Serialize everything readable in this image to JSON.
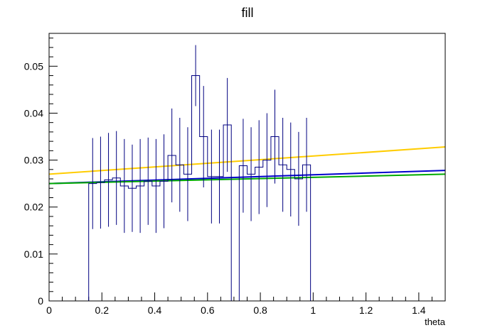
{
  "chart_data": {
    "type": "histogram",
    "title": "fill",
    "xlabel": "theta",
    "ylabel": "",
    "xlim": [
      0,
      1.5
    ],
    "ylim": [
      0,
      0.057
    ],
    "x_ticks": [
      0,
      0.2,
      0.4,
      0.6,
      0.8,
      1,
      1.2,
      1.4
    ],
    "x_tick_labels": [
      "0",
      "0.2",
      "0.4",
      "0.6",
      "0.8",
      "1",
      "1.2",
      "1.4"
    ],
    "y_ticks": [
      0,
      0.01,
      0.02,
      0.03,
      0.04,
      0.05
    ],
    "y_tick_labels": [
      "0",
      "0.01",
      "0.02",
      "0.03",
      "0.04",
      "0.05"
    ],
    "bin_width": 0.03,
    "histogram": {
      "color": "#000080",
      "bins": [
        {
          "x0": 0.15,
          "y": 0.025,
          "err": 0.0097
        },
        {
          "x0": 0.18,
          "y": 0.0252,
          "err": 0.0098
        },
        {
          "x0": 0.21,
          "y": 0.0258,
          "err": 0.01
        },
        {
          "x0": 0.24,
          "y": 0.0262,
          "err": 0.01
        },
        {
          "x0": 0.27,
          "y": 0.0245,
          "err": 0.01
        },
        {
          "x0": 0.3,
          "y": 0.024,
          "err": 0.0093
        },
        {
          "x0": 0.33,
          "y": 0.0245,
          "err": 0.01
        },
        {
          "x0": 0.36,
          "y": 0.0255,
          "err": 0.0093
        },
        {
          "x0": 0.39,
          "y": 0.0245,
          "err": 0.01
        },
        {
          "x0": 0.42,
          "y": 0.0255,
          "err": 0.01
        },
        {
          "x0": 0.45,
          "y": 0.031,
          "err": 0.01
        },
        {
          "x0": 0.48,
          "y": 0.029,
          "err": 0.01
        },
        {
          "x0": 0.51,
          "y": 0.027,
          "err": 0.01
        },
        {
          "x0": 0.54,
          "y": 0.048,
          "err": 0.0065
        },
        {
          "x0": 0.57,
          "y": 0.035,
          "err": 0.0108
        },
        {
          "x0": 0.6,
          "y": 0.0265,
          "err": 0.01
        },
        {
          "x0": 0.63,
          "y": 0.0265,
          "err": 0.01
        },
        {
          "x0": 0.66,
          "y": 0.0375,
          "err": 0.01
        },
        {
          "x0": 0.72,
          "y": 0.0288,
          "err": 0.01
        },
        {
          "x0": 0.75,
          "y": 0.027,
          "err": 0.01
        },
        {
          "x0": 0.78,
          "y": 0.0285,
          "err": 0.01
        },
        {
          "x0": 0.81,
          "y": 0.03,
          "err": 0.01
        },
        {
          "x0": 0.84,
          "y": 0.035,
          "err": 0.01
        },
        {
          "x0": 0.87,
          "y": 0.029,
          "err": 0.01
        },
        {
          "x0": 0.9,
          "y": 0.028,
          "err": 0.01
        },
        {
          "x0": 0.93,
          "y": 0.026,
          "err": 0.01
        },
        {
          "x0": 0.96,
          "y": 0.029,
          "err": 0.01
        }
      ]
    },
    "series": [
      {
        "type": "line",
        "color": "#ffcc00",
        "x": [
          0,
          1.5
        ],
        "y": [
          0.027,
          0.0328
        ]
      },
      {
        "type": "line",
        "color": "#0000cc",
        "x": [
          0,
          1.5
        ],
        "y": [
          0.025,
          0.0278
        ]
      },
      {
        "type": "line",
        "color": "#00aa00",
        "x": [
          0,
          1.5
        ],
        "y": [
          0.025,
          0.027
        ]
      }
    ],
    "grid": false,
    "legend": "none"
  }
}
